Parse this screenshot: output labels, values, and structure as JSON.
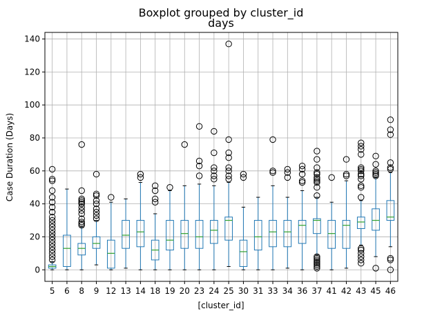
{
  "chart_data": {
    "type": "boxplot",
    "title": "Boxplot grouped by cluster_id",
    "subtitle": "days",
    "xlabel": "[cluster_id]",
    "ylabel": "Case Duration (Days)",
    "ylim": [
      -7,
      144
    ],
    "yticks": [
      0,
      20,
      40,
      60,
      80,
      100,
      120,
      140
    ],
    "grid": true,
    "categories": [
      "5",
      "6",
      "8",
      "9",
      "12",
      "13",
      "14",
      "18",
      "19",
      "20",
      "23",
      "24",
      "25",
      "30",
      "31",
      "33",
      "34",
      "36",
      "37",
      "41",
      "42",
      "43",
      "45",
      "46"
    ],
    "boxes": [
      {
        "q1": 1,
        "median": 2,
        "q3": 3,
        "whisker_low": 0,
        "whisker_high": 5,
        "fliers": [
          6,
          8,
          10,
          12,
          14,
          16,
          18,
          20,
          22,
          24,
          26,
          28,
          30,
          32,
          35,
          38,
          41,
          44,
          48,
          54,
          55,
          61
        ]
      },
      {
        "q1": 2,
        "median": 13,
        "q3": 21,
        "whisker_low": 0,
        "whisker_high": 49,
        "fliers": []
      },
      {
        "q1": 9,
        "median": 13,
        "q3": 16,
        "whisker_low": 0,
        "whisker_high": 26,
        "fliers": [
          27,
          28,
          29,
          31,
          34,
          36,
          38,
          40,
          41,
          42,
          43,
          48,
          76
        ]
      },
      {
        "q1": 13,
        "median": 16,
        "q3": 20,
        "whisker_low": 3,
        "whisker_high": 30,
        "fliers": [
          31,
          33,
          35,
          37,
          40,
          42,
          45,
          46,
          58
        ]
      },
      {
        "q1": 1,
        "median": 10,
        "q3": 18,
        "whisker_low": 0,
        "whisker_high": 41,
        "fliers": [
          44
        ]
      },
      {
        "q1": 13,
        "median": 21,
        "q3": 30,
        "whisker_low": 1,
        "whisker_high": 43,
        "fliers": []
      },
      {
        "q1": 14,
        "median": 23,
        "q3": 30,
        "whisker_low": 0,
        "whisker_high": 53,
        "fliers": [
          56,
          58
        ]
      },
      {
        "q1": 6,
        "median": 12,
        "q3": 18,
        "whisker_low": 0,
        "whisker_high": 34,
        "fliers": [
          41,
          43,
          48,
          51
        ]
      },
      {
        "q1": 12,
        "median": 18,
        "q3": 30,
        "whisker_low": 0,
        "whisker_high": 48,
        "fliers": [
          50
        ]
      },
      {
        "q1": 13,
        "median": 22,
        "q3": 30,
        "whisker_low": 0,
        "whisker_high": 51,
        "fliers": [
          76
        ]
      },
      {
        "q1": 13,
        "median": 20,
        "q3": 30,
        "whisker_low": 0,
        "whisker_high": 52,
        "fliers": [
          57,
          63,
          66,
          87
        ]
      },
      {
        "q1": 16,
        "median": 24,
        "q3": 30,
        "whisker_low": 0,
        "whisker_high": 51,
        "fliers": [
          55,
          57,
          60,
          62,
          71,
          84
        ]
      },
      {
        "q1": 18,
        "median": 30,
        "q3": 32,
        "whisker_low": 2,
        "whisker_high": 53,
        "fliers": [
          55,
          57,
          60,
          62,
          68,
          71,
          79,
          137
        ]
      },
      {
        "q1": 2,
        "median": 11,
        "q3": 18,
        "whisker_low": 0,
        "whisker_high": 38,
        "fliers": [
          56,
          58
        ]
      },
      {
        "q1": 12,
        "median": 20,
        "q3": 30,
        "whisker_low": 0,
        "whisker_high": 44,
        "fliers": []
      },
      {
        "q1": 14,
        "median": 23,
        "q3": 30,
        "whisker_low": 0,
        "whisker_high": 51,
        "fliers": [
          59,
          60,
          79
        ]
      },
      {
        "q1": 14,
        "median": 23,
        "q3": 30,
        "whisker_low": 1,
        "whisker_high": 44,
        "fliers": [
          56,
          59,
          61
        ]
      },
      {
        "q1": 16,
        "median": 27,
        "q3": 30,
        "whisker_low": 0,
        "whisker_high": 48,
        "fliers": [
          53,
          54,
          58,
          61,
          63
        ]
      },
      {
        "q1": 22,
        "median": 30,
        "q3": 31,
        "whisker_low": 9,
        "whisker_high": 44,
        "fliers": [
          1,
          2,
          3,
          4,
          5,
          6,
          7,
          8,
          45,
          50,
          53,
          54,
          55,
          56,
          58,
          59,
          62,
          67,
          72
        ]
      },
      {
        "q1": 13,
        "median": 22,
        "q3": 30,
        "whisker_low": 0,
        "whisker_high": 41,
        "fliers": [
          56
        ]
      },
      {
        "q1": 13,
        "median": 27,
        "q3": 30,
        "whisker_low": 1,
        "whisker_high": 54,
        "fliers": [
          57,
          58,
          67
        ]
      },
      {
        "q1": 25,
        "median": 29,
        "q3": 32,
        "whisker_low": 15,
        "whisker_high": 42,
        "fliers": [
          4,
          6,
          8,
          10,
          12,
          13,
          44,
          50,
          51,
          55,
          57,
          58,
          60,
          61,
          62,
          70,
          73,
          75,
          77
        ]
      },
      {
        "q1": 24,
        "median": 30,
        "q3": 37,
        "whisker_low": 8,
        "whisker_high": 56,
        "fliers": [
          1,
          57,
          58,
          59,
          60,
          64,
          69
        ]
      },
      {
        "q1": 30,
        "median": 32,
        "q3": 42,
        "whisker_low": 14,
        "whisker_high": 59,
        "fliers": [
          0,
          6,
          7,
          61,
          62,
          65,
          82,
          85,
          91
        ]
      }
    ]
  }
}
